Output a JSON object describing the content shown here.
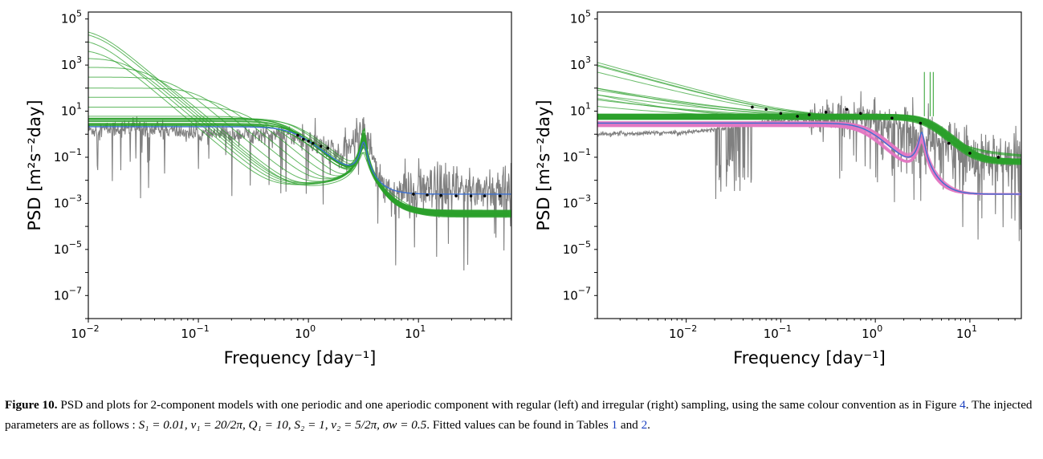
{
  "colors": {
    "observed": "#808080",
    "posterior_samples": "#2ca02c",
    "posterior_samples_alt": "#e377c2",
    "true_model": "#3b6fd1",
    "binned_points": "#000000"
  },
  "chart_data": [
    {
      "type": "line",
      "panel": "left",
      "sampling": "regular",
      "title": "",
      "xlabel_main": "Frequency",
      "xlabel_unit": "[day⁻¹]",
      "ylabel_main": "PSD",
      "ylabel_unit": "[m²s⁻²day]",
      "xscale": "log",
      "yscale": "log",
      "xlim": [
        0.01,
        70
      ],
      "ylim": [
        1e-08,
        200000.0
      ],
      "x_ticks": [
        {
          "value": 0.01,
          "base": "10",
          "exp": "−2"
        },
        {
          "value": 0.1,
          "base": "10",
          "exp": "−1"
        },
        {
          "value": 1,
          "base": "10",
          "exp": "0"
        },
        {
          "value": 10,
          "base": "10",
          "exp": "1"
        }
      ],
      "y_ticks": [
        {
          "value": 100000.0,
          "base": "10",
          "exp": "5"
        },
        {
          "value": 1000.0,
          "base": "10",
          "exp": "3"
        },
        {
          "value": 10,
          "base": "10",
          "exp": "1"
        },
        {
          "value": 0.1,
          "base": "10",
          "exp": "−1"
        },
        {
          "value": 0.001,
          "base": "10",
          "exp": "−3"
        },
        {
          "value": 1e-05,
          "base": "10",
          "exp": "−5"
        },
        {
          "value": 1e-07,
          "base": "10",
          "exp": "−7"
        }
      ],
      "model": {
        "S1": 0.01,
        "nu1": 3.18,
        "Q1": 10,
        "S2": 1,
        "nu2": 0.8,
        "sigma_w": 0.5
      },
      "series": [
        {
          "role": "observed",
          "x": [
            0.01,
            0.03,
            0.1,
            0.3,
            0.6,
            1,
            2,
            3.2,
            5,
            10,
            30,
            70
          ],
          "values": [
            1.5,
            2.0,
            1.0,
            1.0,
            1.0,
            0.5,
            0.1,
            2.0,
            0.003,
            0.003,
            0.004,
            0.004
          ]
        },
        {
          "role": "true_model",
          "x": [
            0.01,
            0.1,
            0.5,
            1,
            2,
            3.2,
            6,
            10,
            70
          ],
          "values": [
            2.1,
            2.1,
            1.6,
            0.5,
            0.12,
            1.6,
            0.004,
            0.0025,
            0.0025
          ]
        },
        {
          "role": "binned_points",
          "x": [
            0.8,
            0.9,
            1.0,
            1.1,
            1.3,
            1.5,
            9,
            12,
            16,
            22,
            30,
            40,
            55
          ],
          "values": [
            0.9,
            0.6,
            0.5,
            0.4,
            0.3,
            0.25,
            0.0025,
            0.0023,
            0.0022,
            0.0021,
            0.0021,
            0.0021,
            0.0021
          ]
        },
        {
          "role": "posterior_low_freq_plateaus",
          "values": [
            40000,
            30000,
            15000,
            5000,
            2000,
            800,
            300,
            100,
            40,
            15,
            6,
            3
          ]
        }
      ]
    },
    {
      "type": "line",
      "panel": "right",
      "sampling": "irregular",
      "title": "",
      "xlabel_main": "Frequency",
      "xlabel_unit": "[day⁻¹]",
      "ylabel_main": "PSD",
      "ylabel_unit": "[m²s⁻²day]",
      "xscale": "log",
      "yscale": "log",
      "xlim": [
        0.00115,
        35
      ],
      "ylim": [
        1e-08,
        200000.0
      ],
      "x_ticks": [
        {
          "value": 0.01,
          "base": "10",
          "exp": "−2"
        },
        {
          "value": 0.1,
          "base": "10",
          "exp": "−1"
        },
        {
          "value": 1,
          "base": "10",
          "exp": "0"
        },
        {
          "value": 10,
          "base": "10",
          "exp": "1"
        }
      ],
      "y_ticks": [
        {
          "value": 100000.0,
          "base": "10",
          "exp": "5"
        },
        {
          "value": 1000.0,
          "base": "10",
          "exp": "3"
        },
        {
          "value": 10,
          "base": "10",
          "exp": "1"
        },
        {
          "value": 0.1,
          "base": "10",
          "exp": "−1"
        },
        {
          "value": 0.001,
          "base": "10",
          "exp": "−3"
        },
        {
          "value": 1e-05,
          "base": "10",
          "exp": "−5"
        },
        {
          "value": 1e-07,
          "base": "10",
          "exp": "−7"
        }
      ],
      "series": [
        {
          "role": "observed",
          "x": [
            0.00115,
            0.01,
            0.03,
            0.1,
            0.3,
            1,
            2,
            3,
            5,
            10,
            35
          ],
          "values": [
            1.0,
            1.2,
            2.0,
            4.0,
            5.0,
            5.0,
            2.0,
            0.3,
            0.5,
            0.1,
            0.05
          ]
        },
        {
          "role": "true_model",
          "x": [
            0.00115,
            0.1,
            0.5,
            1.0,
            1.8,
            3.1,
            5,
            10,
            35
          ],
          "values": [
            3.0,
            3.0,
            2.5,
            1.2,
            0.12,
            1.5,
            0.003,
            0.0025,
            0.0025
          ]
        },
        {
          "role": "posterior_samples",
          "x": [
            0.00115,
            0.1,
            1,
            2,
            4,
            10,
            35
          ],
          "values": [
            6.0,
            6.0,
            5.8,
            4.0,
            0.8,
            0.1,
            0.06
          ]
        },
        {
          "role": "binned_points",
          "x": [
            0.05,
            0.07,
            0.1,
            0.15,
            0.2,
            0.3,
            0.5,
            0.7,
            1.5,
            3,
            6,
            10,
            20
          ],
          "values": [
            15,
            12,
            8,
            6,
            7,
            9,
            12,
            8,
            5,
            3,
            0.4,
            0.15,
            0.1
          ]
        }
      ]
    }
  ],
  "caption": {
    "label": "Figure 10.",
    "text_1": "PSD and plots for 2-component models with one periodic and one aperiodic component with regular (left) and irregular (right) sampling, using the same colour convention as in Figure",
    "ref_figure": "4",
    "text_2": ". The injected parameters are as follows :",
    "params": "S₁ = 0.01, ν₁ = 20/2π, Q₁ = 10, S₂ = 1, ν₂ = 5/2π, σw = 0.5",
    "text_3": ". Fitted values can be found in Tables",
    "ref_table_1": "1",
    "text_4": "and",
    "ref_table_2": "2",
    "text_5": "."
  }
}
